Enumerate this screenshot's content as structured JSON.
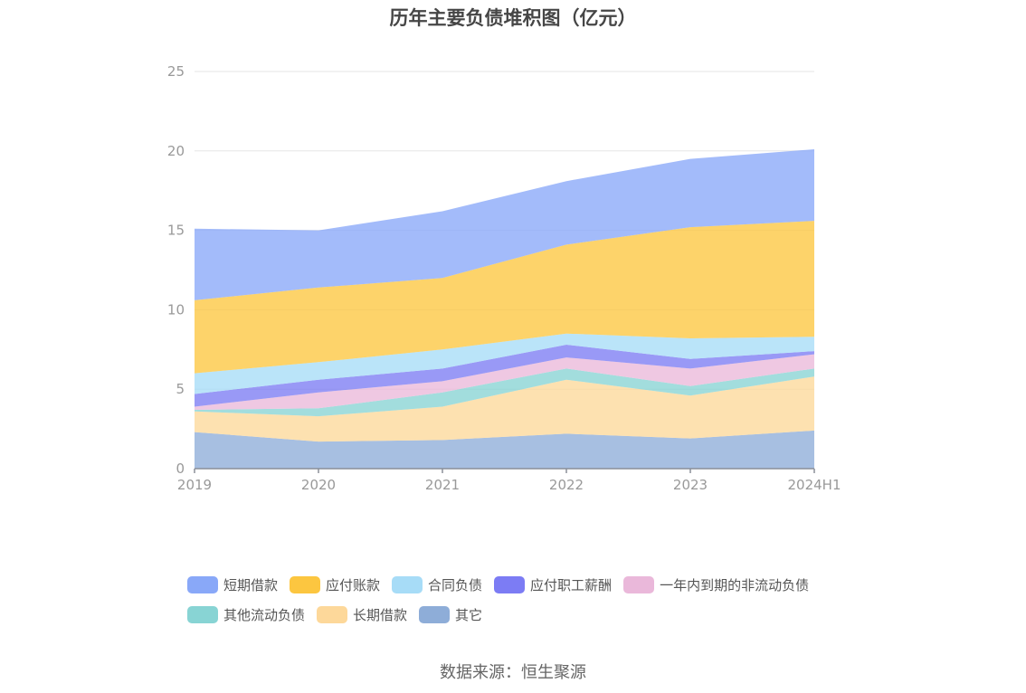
{
  "chart_data": {
    "type": "area",
    "stacked": true,
    "title": "历年主要负债堆积图（亿元）",
    "categories": [
      "2019",
      "2020",
      "2021",
      "2022",
      "2023",
      "2024H1"
    ],
    "ylim": [
      0,
      25
    ],
    "yticks": [
      "0",
      "5",
      "10",
      "15",
      "20",
      "25"
    ],
    "grid": true,
    "legend_position": "bottom",
    "series": [
      {
        "name": "其它",
        "color": "#8eadd8",
        "values": [
          2.3,
          1.7,
          1.8,
          2.2,
          1.9,
          2.4
        ]
      },
      {
        "name": "长期借款",
        "color": "#fdd89a",
        "values": [
          1.3,
          1.6,
          2.1,
          3.4,
          2.7,
          3.4
        ]
      },
      {
        "name": "其他流动负债",
        "color": "#88d4d4",
        "values": [
          0.1,
          0.5,
          0.9,
          0.7,
          0.6,
          0.5
        ]
      },
      {
        "name": "一年内到期的非流动负债",
        "color": "#eab8da",
        "values": [
          0.2,
          1.0,
          0.7,
          0.7,
          1.1,
          0.9
        ]
      },
      {
        "name": "应付职工薪酬",
        "color": "#7c7cf4",
        "values": [
          0.8,
          0.8,
          0.8,
          0.8,
          0.6,
          0.2
        ]
      },
      {
        "name": "合同负债",
        "color": "#a7dcf7",
        "values": [
          1.3,
          1.1,
          1.2,
          0.7,
          1.3,
          0.9
        ]
      },
      {
        "name": "应付账款",
        "color": "#fcc640",
        "values": [
          4.6,
          4.7,
          4.5,
          5.6,
          7.0,
          7.3
        ]
      },
      {
        "name": "短期借款",
        "color": "#89a8f8",
        "values": [
          4.5,
          3.6,
          4.2,
          4.0,
          4.3,
          4.5
        ]
      }
    ]
  },
  "legend": [
    [
      {
        "label": "短期借款",
        "color": "#89a8f8"
      },
      {
        "label": "应付账款",
        "color": "#fcc640"
      },
      {
        "label": "合同负债",
        "color": "#a7dcf7"
      },
      {
        "label": "应付职工薪酬",
        "color": "#7c7cf4"
      },
      {
        "label": "一年内到期的非流动负债",
        "color": "#eab8da"
      }
    ],
    [
      {
        "label": "其他流动负债",
        "color": "#88d4d4"
      },
      {
        "label": "长期借款",
        "color": "#fdd89a"
      },
      {
        "label": "其它",
        "color": "#8eadd8"
      }
    ]
  ],
  "source": "数据来源：恒生聚源"
}
